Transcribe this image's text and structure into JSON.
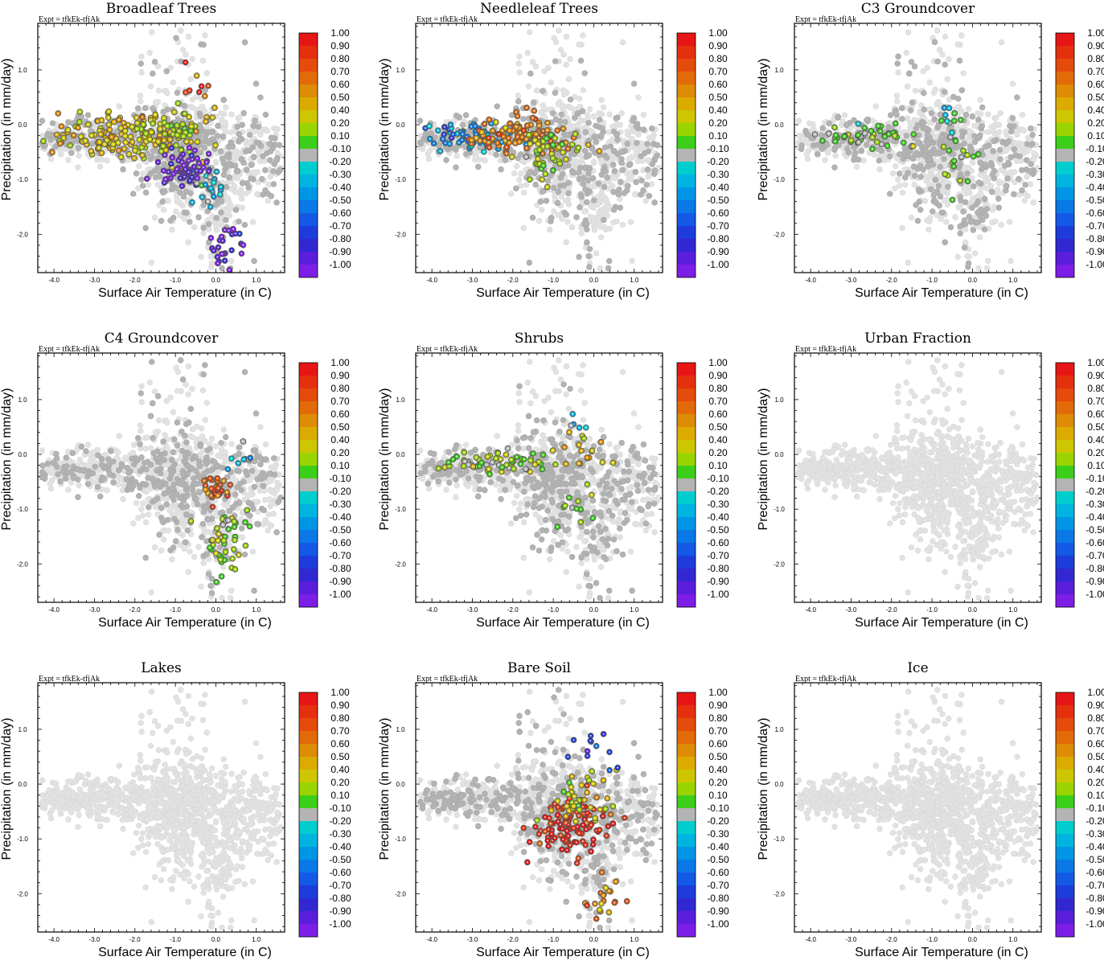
{
  "figure": {
    "expt_label": "Expt = tfkEk-tfjAk",
    "x_label": "Surface Air Temperature (in C)",
    "y_label": "Precipitation (in mm/day)"
  },
  "chart_data": {
    "type": "scatter",
    "xlim": [
      -4.4,
      1.7
    ],
    "ylim": [
      -2.7,
      1.85
    ],
    "x_ticks": [
      -4.0,
      -3.0,
      -2.0,
      -1.0,
      0.0,
      1.0
    ],
    "x_tick_labels": [
      "-4.0",
      "-3.0",
      "-2.0",
      "-1.0",
      "0.0",
      "1.0"
    ],
    "y_ticks": [
      1.0,
      0.0,
      -1.0,
      -2.0
    ],
    "y_tick_labels": [
      "1.0",
      "0.0",
      "-1.0",
      "-2.0"
    ],
    "grid": false,
    "colorbar": {
      "labels": [
        "1.00",
        "0.90",
        "0.80",
        "0.70",
        "0.60",
        "0.50",
        "0.40",
        "0.20",
        "0.10",
        "-0.10",
        "-0.20",
        "-0.30",
        "-0.40",
        "-0.50",
        "-0.60",
        "-0.70",
        "-0.80",
        "-0.90",
        "-1.00"
      ],
      "colors": [
        "#e61616",
        "#e5300e",
        "#e54b0b",
        "#e26a08",
        "#de8b06",
        "#dcab00",
        "#cdc600",
        "#9ad400",
        "#3ccf1a",
        "#b4b4b4",
        "#00cdcd",
        "#00b4e1",
        "#0096e6",
        "#0a78e6",
        "#145ae6",
        "#1e3cdc",
        "#3228d2",
        "#5a1edc",
        "#7d1ee6"
      ]
    },
    "panels": [
      {
        "title": "Broadleaf Trees",
        "groups": [
          {
            "cx": -2.3,
            "cy": -0.2,
            "sx": 1.4,
            "sy": 0.35,
            "n": 150,
            "v": 0.45
          },
          {
            "cx": -1.0,
            "cy": -0.15,
            "sx": 0.6,
            "sy": 0.35,
            "n": 60,
            "v": 0.3
          },
          {
            "cx": -0.8,
            "cy": -0.8,
            "sx": 0.5,
            "sy": 0.25,
            "n": 70,
            "v": -0.95
          },
          {
            "cx": 0.2,
            "cy": -2.2,
            "sx": 0.5,
            "sy": 0.35,
            "n": 25,
            "v": -0.95
          },
          {
            "cx": -0.2,
            "cy": -1.2,
            "sx": 0.5,
            "sy": 0.35,
            "n": 20,
            "v": -0.25
          },
          {
            "cx": -0.4,
            "cy": 0.7,
            "sx": 0.3,
            "sy": 0.3,
            "n": 8,
            "v": 0.8
          }
        ]
      },
      {
        "title": "Needleleaf Trees",
        "groups": [
          {
            "cx": -3.0,
            "cy": -0.2,
            "sx": 0.8,
            "sy": 0.2,
            "n": 60,
            "v": -0.45
          },
          {
            "cx": -1.8,
            "cy": -0.2,
            "sx": 0.9,
            "sy": 0.3,
            "n": 110,
            "v": 0.65
          },
          {
            "cx": -1.0,
            "cy": -0.5,
            "sx": 0.6,
            "sy": 0.4,
            "n": 50,
            "v": 0.25
          }
        ]
      },
      {
        "title": "C3 Groundcover",
        "groups": [
          {
            "cx": -2.6,
            "cy": -0.2,
            "sx": 1.0,
            "sy": 0.2,
            "n": 50,
            "v": 0.1
          },
          {
            "cx": -0.4,
            "cy": -0.6,
            "sx": 0.5,
            "sy": 0.6,
            "n": 20,
            "v": 0.1
          },
          {
            "cx": -0.5,
            "cy": 0.1,
            "sx": 0.3,
            "sy": 0.3,
            "n": 8,
            "v": -0.25
          }
        ]
      },
      {
        "title": "C4 Groundcover",
        "groups": [
          {
            "cx": 0.0,
            "cy": -0.6,
            "sx": 0.3,
            "sy": 0.25,
            "n": 30,
            "v": 0.75
          },
          {
            "cx": 0.3,
            "cy": -1.6,
            "sx": 0.5,
            "sy": 0.5,
            "n": 45,
            "v": 0.15
          },
          {
            "cx": 0.8,
            "cy": 0.0,
            "sx": 0.4,
            "sy": 0.3,
            "n": 8,
            "v": -0.25
          }
        ]
      },
      {
        "title": "Shrubs",
        "groups": [
          {
            "cx": -2.3,
            "cy": -0.15,
            "sx": 1.2,
            "sy": 0.15,
            "n": 60,
            "v": 0.15
          },
          {
            "cx": -0.3,
            "cy": 0.0,
            "sx": 0.5,
            "sy": 0.4,
            "n": 18,
            "v": 0.5
          },
          {
            "cx": -0.4,
            "cy": -1.0,
            "sx": 0.4,
            "sy": 0.5,
            "n": 12,
            "v": 0.15
          },
          {
            "cx": -0.5,
            "cy": 0.5,
            "sx": 0.3,
            "sy": 0.2,
            "n": 5,
            "v": -0.25
          }
        ]
      },
      {
        "title": "Urban Fraction",
        "groups": []
      },
      {
        "title": "Lakes",
        "groups": []
      },
      {
        "title": "Bare Soil",
        "groups": [
          {
            "cx": -0.6,
            "cy": -0.8,
            "sx": 0.7,
            "sy": 0.4,
            "n": 110,
            "v": 0.95
          },
          {
            "cx": -0.3,
            "cy": -0.3,
            "sx": 0.8,
            "sy": 0.35,
            "n": 40,
            "v": 0.35
          },
          {
            "cx": 0.3,
            "cy": -2.1,
            "sx": 0.5,
            "sy": 0.35,
            "n": 20,
            "v": 0.6
          },
          {
            "cx": 0.0,
            "cy": 0.6,
            "sx": 0.5,
            "sy": 0.4,
            "n": 12,
            "v": -0.7
          }
        ]
      },
      {
        "title": "Ice",
        "groups": []
      }
    ]
  }
}
